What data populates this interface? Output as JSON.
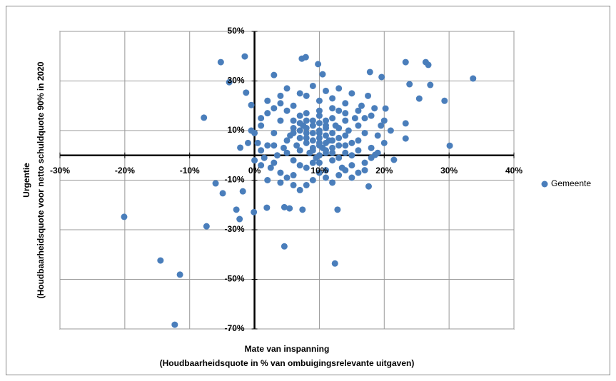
{
  "chart_data": {
    "type": "scatter",
    "x_label": [
      "Mate van inspanning",
      "(Houdbaarheidsquote in % van ombuigingsrelevante uitgaven)"
    ],
    "y_label": [
      "Urgentie",
      "(Houdbaarheidsquote voor netto schuldquote 90% in 2020"
    ],
    "xlim": [
      -30,
      40
    ],
    "ylim": [
      -70,
      50
    ],
    "xticks": [
      {
        "value": -30,
        "label": "-30%"
      },
      {
        "value": -20,
        "label": "-20%"
      },
      {
        "value": -10,
        "label": "-10%"
      },
      {
        "value": 0,
        "label": "0%"
      },
      {
        "value": 10,
        "label": "10%"
      },
      {
        "value": 20,
        "label": "20%"
      },
      {
        "value": 30,
        "label": "30%"
      },
      {
        "value": 40,
        "label": "40%"
      }
    ],
    "yticks": [
      {
        "value": 50,
        "label": "50%"
      },
      {
        "value": 30,
        "label": "30%"
      },
      {
        "value": 10,
        "label": "10%"
      },
      {
        "value": -10,
        "label": "-10%"
      },
      {
        "value": -30,
        "label": "-30%"
      },
      {
        "value": -50,
        "label": "-50%"
      },
      {
        "value": -70,
        "label": "-70%"
      }
    ],
    "grid": true,
    "legend": "right",
    "series": [
      {
        "name": "Gemeente",
        "color": "#4a7ebb",
        "x": [
          -20.1,
          -14.5,
          -11.5,
          -12.3,
          -7.4,
          -7.8,
          -5.2,
          -1.5,
          -3.9,
          -1.3,
          -0.5,
          -6.0,
          -4.9,
          -2.8,
          -2.3,
          -0.1,
          -1.8,
          -2.2,
          4.6,
          12.4,
          12.8,
          26.4,
          26.8,
          23.3,
          33.7,
          29.3,
          27.1,
          30.1,
          23.9,
          25.4,
          23.3,
          23.3,
          21.5,
          20.2,
          19.6,
          17.8,
          7.3,
          7.9,
          9.8,
          3.0,
          10.5,
          17.6,
          18.6,
          1.9,
          4.6,
          5.4,
          7.4,
          10,
          11,
          9,
          12,
          8,
          13,
          10,
          11,
          7,
          14,
          9,
          12,
          10,
          8,
          15,
          11,
          13,
          6,
          16,
          9,
          12,
          7,
          14,
          10,
          5,
          17,
          11,
          8,
          15,
          6,
          13,
          10,
          9,
          12,
          11,
          10,
          8,
          14,
          16,
          7,
          5,
          4,
          3,
          2,
          1,
          3,
          4,
          5,
          6,
          7,
          9,
          11,
          13,
          15,
          17,
          18,
          19,
          20,
          18,
          16,
          14,
          12,
          10,
          8,
          6,
          4,
          3,
          2,
          1,
          0,
          0.5,
          1.5,
          2.5,
          3.5,
          4.5,
          5.5,
          6.5,
          7.5,
          8.5,
          9.5,
          10.5,
          11.5,
          12.5,
          13.5,
          14.5,
          15.5,
          16.5,
          17.5,
          18.5,
          19.5,
          17,
          15,
          13,
          11,
          9,
          7,
          5,
          4,
          2,
          1,
          -0.5,
          -1,
          0,
          1,
          2,
          4,
          6,
          8,
          10,
          12,
          14,
          16,
          18,
          20,
          21,
          19,
          17,
          15,
          13,
          11,
          9,
          7,
          5,
          3,
          6,
          8,
          10,
          12,
          14,
          16,
          7,
          9,
          11,
          13,
          12,
          10,
          8,
          9,
          11,
          10,
          8,
          12,
          14,
          6,
          7,
          10
        ],
        "values": [
          -24.8,
          -42.4,
          -48.1,
          -68.3,
          -28.6,
          15.2,
          37.6,
          39.9,
          29.5,
          25.3,
          20.3,
          -11.3,
          -15.3,
          -21.9,
          -25.7,
          -22.9,
          -14.5,
          3.1,
          -36.7,
          -43.6,
          -21.9,
          37.6,
          36.5,
          37.6,
          31.0,
          22.0,
          28.4,
          3.9,
          28.7,
          22.9,
          12.9,
          6.8,
          -1.8,
          18.9,
          31.6,
          33.6,
          39.0,
          39.6,
          36.8,
          32.4,
          32.7,
          -12.5,
          0.2,
          -21.1,
          -20.9,
          -21.4,
          -21.9,
          10,
          8,
          12,
          6,
          9,
          11,
          5,
          14,
          7,
          8,
          3,
          15,
          0,
          14,
          5,
          2,
          18,
          11,
          12,
          -3,
          -2,
          2,
          1,
          18,
          6,
          9,
          -6,
          -5,
          -4,
          -2,
          4,
          7,
          6,
          9,
          11,
          13,
          5,
          14,
          6,
          16,
          18,
          14,
          9,
          4,
          2,
          -3,
          -7,
          -9,
          -12,
          -14,
          -10,
          -9,
          -8,
          -9,
          -3,
          3,
          8,
          14,
          16,
          18,
          21,
          23,
          22,
          24,
          20,
          21,
          19,
          17,
          12,
          9,
          5,
          -1,
          -5,
          0,
          3,
          8,
          4,
          12,
          1,
          -1,
          3,
          6,
          12,
          -5,
          10,
          15,
          20,
          24,
          19,
          12,
          15,
          25,
          27,
          26,
          28,
          25,
          27,
          24,
          22,
          15,
          10,
          5,
          -2,
          -4,
          -10,
          -11,
          -8,
          -12,
          -7,
          -11,
          -6,
          -7,
          -1,
          5,
          10,
          1,
          -6,
          0,
          -1,
          1,
          2,
          -4,
          1,
          4,
          14,
          17,
          16,
          19,
          17,
          2,
          10,
          9,
          12,
          7,
          3,
          4,
          11,
          14,
          5,
          -3,
          7,
          1,
          4,
          9,
          13,
          9
        ]
      }
    ]
  }
}
